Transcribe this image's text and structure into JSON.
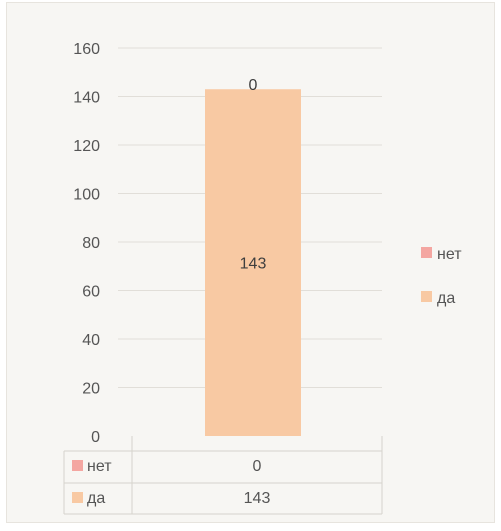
{
  "colors": {
    "net": "#f4a6a1",
    "da": "#f8c9a3",
    "grid": "#e1ded8",
    "text": "#555555"
  },
  "chart_data": {
    "type": "bar",
    "stacked": true,
    "categories": [
      ""
    ],
    "y_ticks": [
      "0",
      "20",
      "40",
      "60",
      "80",
      "100",
      "120",
      "140",
      "160"
    ],
    "ylim": [
      0,
      160
    ],
    "grid": true,
    "legend_placement": "right",
    "series": [
      {
        "name": "нет",
        "values": [
          0
        ],
        "data_label": "0",
        "color": "#f4a6a1"
      },
      {
        "name": "да",
        "values": [
          143
        ],
        "data_label": "143",
        "color": "#f8c9a3"
      }
    ],
    "data_table": {
      "rows": [
        {
          "label": "нет",
          "value": "0"
        },
        {
          "label": "да",
          "value": "143"
        }
      ]
    }
  }
}
